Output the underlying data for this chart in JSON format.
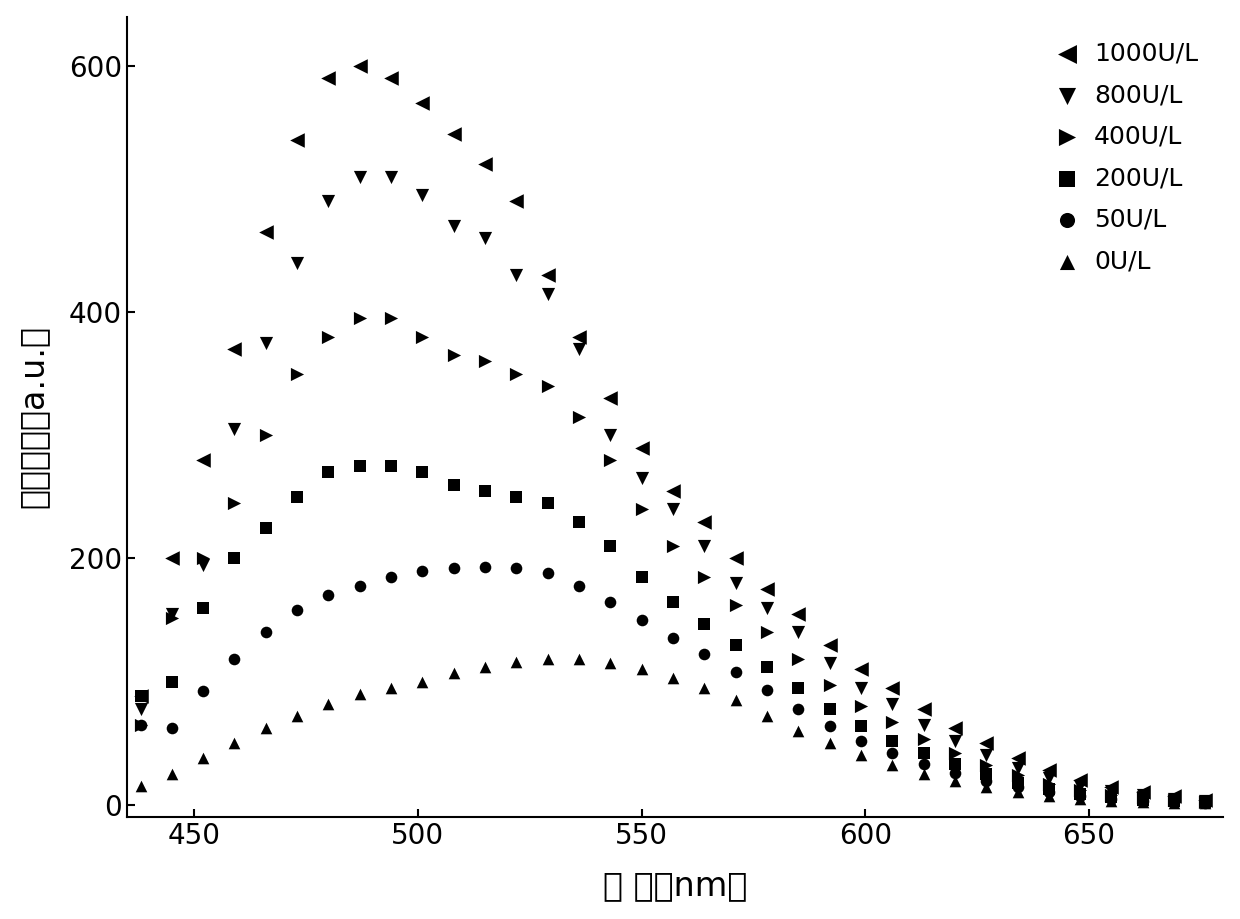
{
  "title": "",
  "xlabel": "波 长（nm）",
  "ylabel": "荼光强度（a.u.）",
  "xlim": [
    435,
    680
  ],
  "ylim": [
    -10,
    640
  ],
  "xticks": [
    450,
    500,
    550,
    600,
    650
  ],
  "yticks": [
    0,
    200,
    400,
    600
  ],
  "background_color": "#ffffff",
  "series": [
    {
      "label": "1000U/L",
      "marker": "<",
      "color": "#000000",
      "x": [
        438,
        445,
        452,
        459,
        466,
        473,
        480,
        487,
        494,
        501,
        508,
        515,
        522,
        529,
        536,
        543,
        550,
        557,
        564,
        571,
        578,
        585,
        592,
        599,
        606,
        613,
        620,
        627,
        634,
        641,
        648,
        655,
        662,
        669,
        676
      ],
      "y": [
        88,
        200,
        280,
        370,
        465,
        540,
        590,
        600,
        590,
        570,
        545,
        520,
        490,
        430,
        380,
        330,
        290,
        255,
        230,
        200,
        175,
        155,
        130,
        110,
        95,
        78,
        62,
        50,
        38,
        28,
        20,
        14,
        10,
        7,
        4
      ]
    },
    {
      "label": "800U/L",
      "marker": "v",
      "color": "#000000",
      "x": [
        438,
        445,
        452,
        459,
        466,
        473,
        480,
        487,
        494,
        501,
        508,
        515,
        522,
        529,
        536,
        543,
        550,
        557,
        564,
        571,
        578,
        585,
        592,
        599,
        606,
        613,
        620,
        627,
        634,
        641,
        648,
        655,
        662,
        669,
        676
      ],
      "y": [
        78,
        155,
        195,
        305,
        375,
        440,
        490,
        510,
        510,
        495,
        470,
        460,
        430,
        415,
        370,
        300,
        265,
        240,
        210,
        180,
        160,
        140,
        115,
        95,
        82,
        65,
        52,
        40,
        30,
        22,
        15,
        11,
        8,
        5,
        3
      ]
    },
    {
      "label": "400U/L",
      "marker": ">",
      "color": "#000000",
      "x": [
        438,
        445,
        452,
        459,
        466,
        473,
        480,
        487,
        494,
        501,
        508,
        515,
        522,
        529,
        536,
        543,
        550,
        557,
        564,
        571,
        578,
        585,
        592,
        599,
        606,
        613,
        620,
        627,
        634,
        641,
        648,
        655,
        662,
        669,
        676
      ],
      "y": [
        65,
        152,
        200,
        245,
        300,
        350,
        380,
        395,
        395,
        380,
        365,
        360,
        350,
        340,
        315,
        280,
        240,
        210,
        185,
        162,
        140,
        118,
        97,
        80,
        67,
        53,
        42,
        32,
        24,
        17,
        12,
        8,
        6,
        4,
        2
      ]
    },
    {
      "label": "200U/L",
      "marker": "s",
      "color": "#000000",
      "x": [
        438,
        445,
        452,
        459,
        466,
        473,
        480,
        487,
        494,
        501,
        508,
        515,
        522,
        529,
        536,
        543,
        550,
        557,
        564,
        571,
        578,
        585,
        592,
        599,
        606,
        613,
        620,
        627,
        634,
        641,
        648,
        655,
        662,
        669,
        676
      ],
      "y": [
        88,
        100,
        160,
        200,
        225,
        250,
        270,
        275,
        275,
        270,
        260,
        255,
        250,
        245,
        230,
        210,
        185,
        165,
        147,
        130,
        112,
        95,
        78,
        64,
        52,
        42,
        33,
        25,
        18,
        13,
        9,
        6,
        4,
        3,
        2
      ]
    },
    {
      "label": "50U/L",
      "marker": "o",
      "color": "#000000",
      "x": [
        438,
        445,
        452,
        459,
        466,
        473,
        480,
        487,
        494,
        501,
        508,
        515,
        522,
        529,
        536,
        543,
        550,
        557,
        564,
        571,
        578,
        585,
        592,
        599,
        606,
        613,
        620,
        627,
        634,
        641,
        648,
        655,
        662,
        669,
        676
      ],
      "y": [
        65,
        62,
        92,
        118,
        140,
        158,
        170,
        178,
        185,
        190,
        192,
        193,
        192,
        188,
        178,
        165,
        150,
        135,
        122,
        108,
        93,
        78,
        64,
        52,
        42,
        33,
        26,
        19,
        14,
        10,
        7,
        5,
        3,
        2,
        1
      ]
    },
    {
      "label": "0U/L",
      "marker": "^",
      "color": "#000000",
      "x": [
        438,
        445,
        452,
        459,
        466,
        473,
        480,
        487,
        494,
        501,
        508,
        515,
        522,
        529,
        536,
        543,
        550,
        557,
        564,
        571,
        578,
        585,
        592,
        599,
        606,
        613,
        620,
        627,
        634,
        641,
        648,
        655,
        662,
        669,
        676
      ],
      "y": [
        15,
        25,
        38,
        50,
        62,
        72,
        82,
        90,
        95,
        100,
        107,
        112,
        116,
        118,
        118,
        115,
        110,
        103,
        95,
        85,
        72,
        60,
        50,
        40,
        32,
        25,
        19,
        14,
        10,
        7,
        5,
        3,
        2,
        1,
        1
      ]
    }
  ]
}
